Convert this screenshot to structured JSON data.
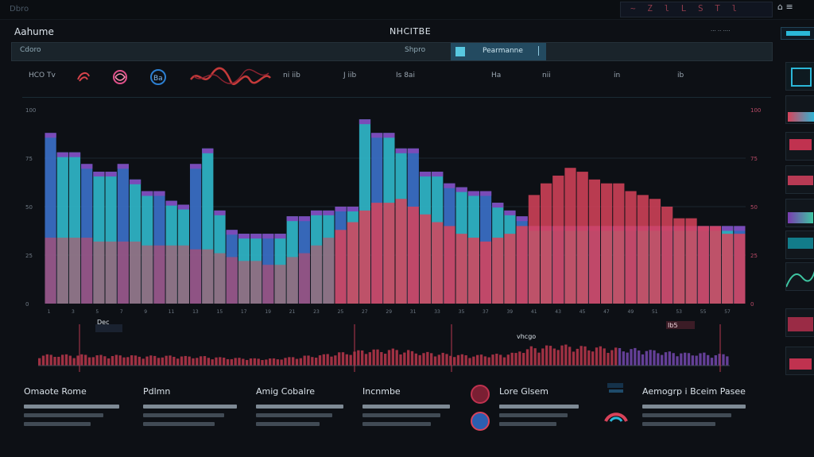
{
  "topbar": {
    "title": "Dbro",
    "glyphs": "~ Z l L S T l",
    "right": "⌂ ≡"
  },
  "header": {
    "app_title": "Aahume",
    "center_title": "NHCITBE",
    "right_meta": "··· ·· ····"
  },
  "tabs": {
    "left": "Cdoro",
    "mid": "Shpro",
    "active": "Pearmanne"
  },
  "legend": [
    {
      "label": "HCO Tv",
      "color": "#c7d2dc"
    },
    {
      "label": "",
      "color": "#d8434b",
      "icon": "swirl-icon"
    },
    {
      "label": "",
      "color": "#e0508a",
      "icon": "knot-icon"
    },
    {
      "label": "",
      "color": "#2c7fd1",
      "icon": "gear-icon"
    },
    {
      "label": "",
      "color": "#c53a3a",
      "icon": "scribble-icon"
    },
    {
      "label": "ni iib",
      "color": "#c7d2dc"
    },
    {
      "label": "J iib",
      "color": "#c7d2dc"
    },
    {
      "label": "Is 8ai",
      "color": "#3fd2a8"
    },
    {
      "label": "Ha",
      "color": "#3fd2a8"
    },
    {
      "label": "nii",
      "color": "#3fd2a8"
    },
    {
      "label": "in",
      "color": "#3fd2a8"
    },
    {
      "label": "ib",
      "color": "#3fd2a8"
    }
  ],
  "chart_data": {
    "type": "bar",
    "categories": [
      "1",
      "2",
      "3",
      "4",
      "5",
      "6",
      "7",
      "8",
      "9",
      "10",
      "11",
      "12",
      "13",
      "14",
      "15",
      "16",
      "17",
      "18",
      "19",
      "20",
      "21",
      "22",
      "23",
      "24",
      "25",
      "26",
      "27",
      "28",
      "29",
      "30",
      "31",
      "32",
      "33",
      "34",
      "35",
      "36",
      "37",
      "38",
      "39",
      "40",
      "41",
      "42",
      "43",
      "44",
      "45",
      "46",
      "47",
      "48",
      "49",
      "50",
      "51",
      "52",
      "53",
      "54",
      "55",
      "56",
      "57",
      "58"
    ],
    "series": [
      {
        "name": "",
        "color": "#2fb5c8",
        "values": [
          88,
          78,
          78,
          72,
          68,
          68,
          72,
          64,
          58,
          58,
          53,
          51,
          72,
          80,
          48,
          38,
          36,
          36,
          36,
          36,
          45,
          45,
          48,
          48,
          50,
          50,
          95,
          88,
          88,
          80,
          80,
          68,
          68,
          62,
          60,
          58,
          58,
          52,
          48,
          45,
          40,
          40,
          40,
          40,
          40,
          40,
          40,
          40,
          40,
          40,
          40,
          40,
          40,
          40,
          40,
          40,
          40,
          40
        ]
      },
      {
        "name": "",
        "color": "#d8435a",
        "values": [
          34,
          34,
          34,
          34,
          32,
          32,
          32,
          32,
          30,
          30,
          30,
          30,
          28,
          28,
          26,
          24,
          22,
          22,
          20,
          20,
          24,
          26,
          30,
          34,
          38,
          42,
          48,
          52,
          52,
          54,
          50,
          46,
          42,
          40,
          36,
          34,
          32,
          34,
          36,
          40,
          56,
          62,
          66,
          70,
          68,
          64,
          62,
          62,
          58,
          56,
          54,
          50,
          44,
          44,
          40,
          40,
          36,
          36
        ]
      }
    ],
    "xlabel": "",
    "ylabel": "",
    "ylim": [
      0,
      100
    ],
    "grid": true
  },
  "footer": [
    {
      "title": "Omaote Rome",
      "icon": ""
    },
    {
      "title": "Pdlmn",
      "icon": ""
    },
    {
      "title": "Amig Cobalre",
      "icon": ""
    },
    {
      "title": "Incnmbe",
      "icon": ""
    },
    {
      "title": "Lore Glsem",
      "icon": "target-icon"
    },
    {
      "title": "Aemogrp i Bceim Pasee",
      "icon": "radar-icon"
    }
  ],
  "annotation": {
    "left": "Dec",
    "right_top": "vhcgo",
    "right_side": "Ib5"
  }
}
